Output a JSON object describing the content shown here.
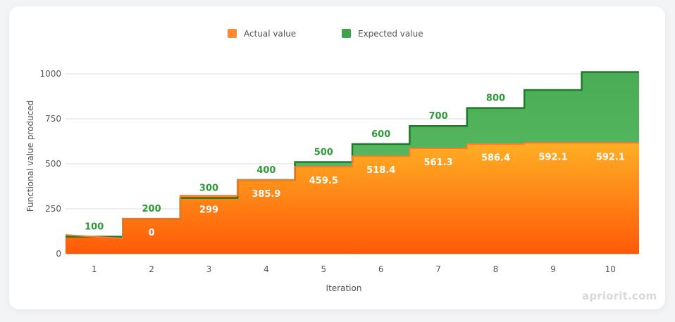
{
  "chart_data": {
    "type": "area",
    "xlabel": "Iteration",
    "ylabel": "Functional value produced",
    "ylim": [
      0,
      1000
    ],
    "yticks": [
      0,
      250,
      500,
      750,
      1000
    ],
    "grid": true,
    "legend_position": "top-center",
    "categories": [
      "1",
      "2",
      "3",
      "4",
      "5",
      "6",
      "7",
      "8",
      "9",
      "10"
    ],
    "series": [
      {
        "name": "Actual value",
        "color": "#ff8a32",
        "values": [
          0,
          0,
          299,
          385.9,
          459.5,
          518.4,
          561.3,
          586.4,
          592.1,
          592.1
        ],
        "labels": [
          "",
          "0",
          "299",
          "385.9",
          "459.5",
          "518.4",
          "561.3",
          "586.4",
          "592.1",
          "592.1"
        ]
      },
      {
        "name": "Expected value",
        "color": "#3fa24a",
        "values": [
          100,
          200,
          300,
          400,
          500,
          600,
          700,
          800,
          900,
          1000
        ],
        "labels": [
          "100",
          "200",
          "300",
          "400",
          "500",
          "600",
          "700",
          "800",
          "",
          ""
        ]
      }
    ]
  },
  "watermark": "apriorit.com"
}
